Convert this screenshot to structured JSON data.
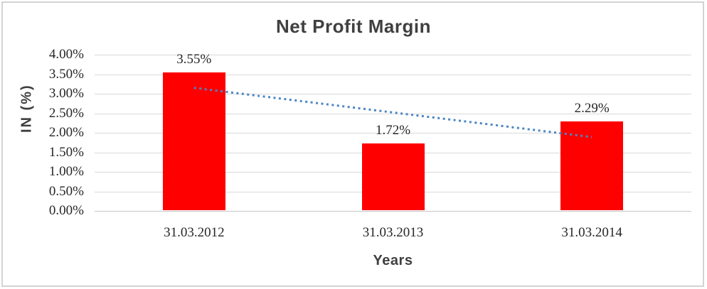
{
  "chart_data": {
    "type": "bar",
    "title": "Net Profit Margin",
    "categories": [
      "31.03.2012",
      "31.03.2013",
      "31.03.2014"
    ],
    "values": [
      3.55,
      1.72,
      2.29
    ],
    "data_labels": [
      "3.55%",
      "1.72%",
      "2.29%"
    ],
    "xlabel": "Years",
    "ylabel": "IN (%)",
    "ylim": [
      0,
      4
    ],
    "ytick_step": 0.5,
    "yticks": [
      "0.00%",
      "0.50%",
      "1.00%",
      "1.50%",
      "2.00%",
      "2.50%",
      "3.00%",
      "3.50%",
      "4.00%"
    ],
    "grid": true,
    "legend": "none",
    "bar_color": "#ff0000",
    "gridline_color": "#d9d9d9",
    "axis_line_color": "#c6c6c6",
    "title_color": "#404040",
    "label_color": "#262626",
    "axis_title_color": "#3f3f3f",
    "trendline": {
      "style": "dotted",
      "color": "#4a86c6",
      "start_value": 3.15,
      "end_value": 1.89
    }
  }
}
